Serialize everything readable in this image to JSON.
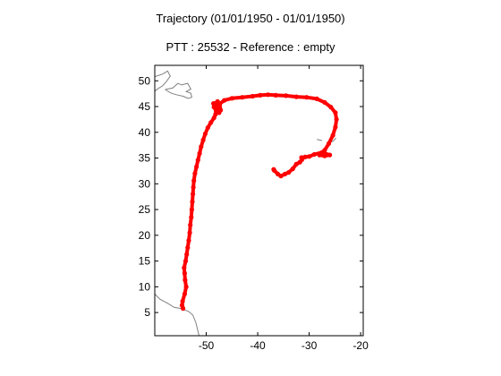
{
  "chart_data": {
    "type": "scatter",
    "title": "Trajectory (01/01/1950 - 01/01/1950)",
    "subtitle": "PTT : 25532 - Reference : empty",
    "xlabel": "",
    "ylabel": "",
    "xlim": [
      -60,
      -19.5
    ],
    "ylim": [
      0.5,
      53
    ],
    "x_ticks": [
      -50,
      -40,
      -30,
      -20
    ],
    "y_ticks": [
      5,
      10,
      15,
      20,
      25,
      30,
      35,
      40,
      45,
      50
    ],
    "grid": false,
    "legend": "none",
    "colors": {
      "track": "#ff0000",
      "coast": "#808080",
      "axes": "#000000"
    },
    "track": {
      "x": [
        -54.5,
        -54.7,
        -54.6,
        -54.2,
        -53.9,
        -54.1,
        -54.2,
        -54.3,
        -54.0,
        -53.8,
        -53.6,
        -53.4,
        -53.2,
        -53.1,
        -52.9,
        -52.8,
        -52.7,
        -52.6,
        -52.5,
        -52.4,
        -52.2,
        -51.9,
        -51.6,
        -51.3,
        -51.0,
        -50.6,
        -50.2,
        -49.7,
        -49.1,
        -48.5,
        -48.2,
        -48.1,
        -48.5,
        -48.3,
        -47.8,
        -47.4,
        -47.2,
        -47.5,
        -48.0,
        -48.6,
        -48.1,
        -47.4,
        -46.5,
        -45.0,
        -43.0,
        -41.0,
        -39.5,
        -38.0,
        -36.5,
        -34.5,
        -32.5,
        -30.5,
        -28.5,
        -27.0,
        -25.8,
        -24.9,
        -24.7,
        -24.9,
        -25.4,
        -26.2,
        -27.0,
        -28.0,
        -27.0,
        -26.0,
        -27.5,
        -29.0,
        -30.0,
        -30.8,
        -31.5,
        -31.4,
        -31.8,
        -32.5,
        -33.2,
        -34.0,
        -34.7,
        -35.5,
        -36.1,
        -36.8,
        -36.9
      ],
      "y": [
        5.8,
        6.4,
        7.2,
        8.6,
        10.0,
        11.3,
        12.6,
        13.7,
        15.0,
        16.3,
        17.6,
        19.0,
        20.5,
        22.0,
        23.5,
        25.0,
        26.5,
        28.0,
        29.3,
        30.6,
        32.0,
        33.3,
        34.6,
        35.9,
        37.2,
        38.5,
        39.7,
        40.9,
        41.9,
        42.8,
        43.5,
        44.2,
        44.9,
        45.6,
        46.0,
        45.4,
        44.3,
        43.8,
        44.6,
        45.6,
        45.1,
        45.5,
        46.2,
        46.6,
        46.8,
        47.0,
        47.2,
        47.3,
        47.2,
        47.1,
        46.9,
        46.8,
        46.5,
        45.8,
        44.9,
        43.8,
        42.5,
        41.0,
        39.4,
        37.8,
        36.5,
        35.6,
        35.4,
        35.6,
        36.1,
        35.7,
        35.3,
        35.2,
        35.1,
        34.7,
        34.2,
        33.8,
        32.9,
        32.2,
        31.9,
        31.5,
        31.9,
        32.6,
        32.8
      ]
    },
    "coastlines": [
      {
        "x": [
          -60.0,
          -58.5,
          -57.5,
          -57.0,
          -57.8,
          -58.5,
          -59.2,
          -60.0
        ],
        "y": [
          50.8,
          51.3,
          51.9,
          50.9,
          49.8,
          49.0,
          48.6,
          48.0
        ]
      },
      {
        "x": [
          -58.0,
          -56.5,
          -55.5,
          -54.8,
          -53.6,
          -53.0,
          -53.9,
          -53.0,
          -52.8,
          -53.5,
          -54.5,
          -55.8,
          -56.8,
          -58.0
        ],
        "y": [
          48.3,
          48.6,
          49.5,
          49.2,
          49.5,
          48.4,
          47.9,
          47.6,
          46.8,
          46.6,
          47.0,
          47.3,
          47.6,
          48.3
        ]
      },
      {
        "x": [
          -60.0,
          -59.0,
          -57.5,
          -56.2,
          -55.0,
          -54.2,
          -53.4,
          -52.6,
          -52.0,
          -51.4
        ],
        "y": [
          8.6,
          7.6,
          6.8,
          6.0,
          5.8,
          5.5,
          5.2,
          4.5,
          3.0,
          0.5
        ]
      },
      {
        "x": [
          -26.0,
          -25.3,
          -24.8
        ],
        "y": [
          38.0,
          38.3,
          38.9
        ]
      },
      {
        "x": [
          -28.5,
          -27.5
        ],
        "y": [
          38.6,
          38.4
        ]
      }
    ]
  }
}
